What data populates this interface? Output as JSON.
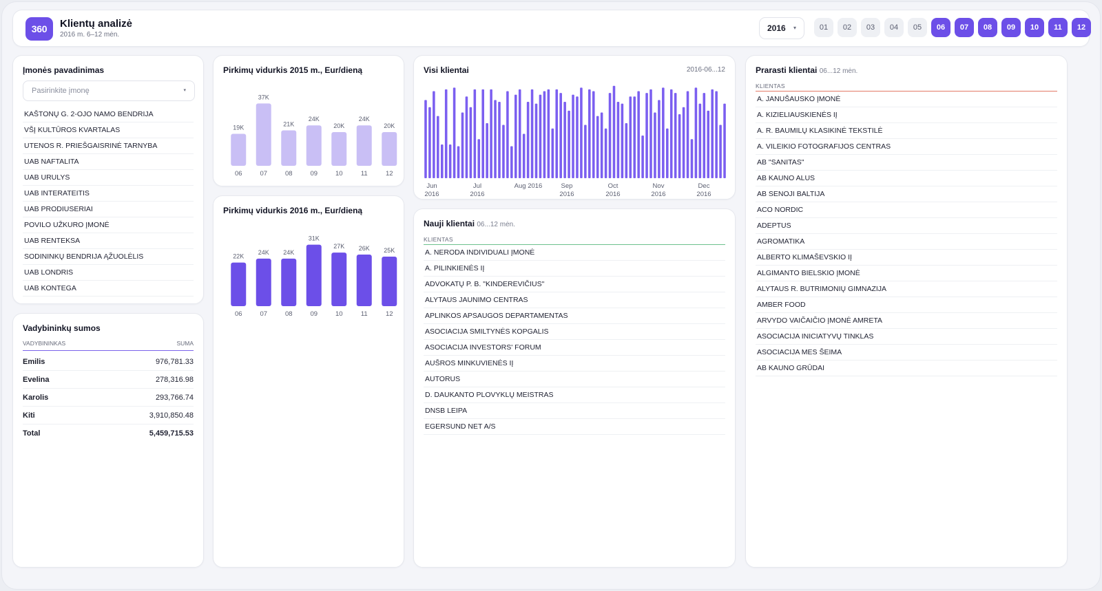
{
  "header": {
    "logo": "360",
    "title": "Klientų analizė",
    "subtitle": "2016 m. 6–12 mėn.",
    "year": "2016",
    "year_chevron_icon": "chevron-down-icon",
    "months": [
      {
        "label": "01",
        "active": false
      },
      {
        "label": "02",
        "active": false
      },
      {
        "label": "03",
        "active": false
      },
      {
        "label": "04",
        "active": false
      },
      {
        "label": "05",
        "active": false
      },
      {
        "label": "06",
        "active": true
      },
      {
        "label": "07",
        "active": true
      },
      {
        "label": "08",
        "active": true
      },
      {
        "label": "09",
        "active": true
      },
      {
        "label": "10",
        "active": true
      },
      {
        "label": "11",
        "active": true
      },
      {
        "label": "12",
        "active": true
      }
    ]
  },
  "companies": {
    "title": "Įmonės pavadinimas",
    "placeholder": "Pasirinkite įmonę",
    "items": [
      "KAŠTONŲ G. 2-OJO NAMO BENDRIJA",
      "VŠĮ KULTŪROS KVARTALAS",
      "UTENOS R. PRIEŠGAISRINĖ TARNYBA",
      "UAB NAFTALITA",
      "UAB URULYS",
      "UAB INTERATEITIS",
      "UAB PRODIUSERIAI",
      "POVILO UŽKURO ĮMONĖ",
      "UAB RENTEKSA",
      "SODININKŲ BENDRIJA ĄŽUOLĖLIS",
      "UAB LONDRIS",
      "UAB KONTEGA"
    ]
  },
  "managers": {
    "title": "Vadybininkų sumos",
    "col_manager": "VADYBININKAS",
    "col_sum": "SUMA",
    "rows": [
      {
        "name": "Emilis",
        "sum": "976,781.33"
      },
      {
        "name": "Evelina",
        "sum": "278,316.98"
      },
      {
        "name": "Karolis",
        "sum": "293,766.74"
      },
      {
        "name": "Kiti",
        "sum": "3,910,850.48"
      }
    ],
    "total_label": "Total",
    "total_value": "5,459,715.53"
  },
  "avg2015": {
    "title": "Pirkimų vidurkis 2015 m., Eur/dieną"
  },
  "avg2016": {
    "title": "Pirkimų vidurkis 2016 m., Eur/dieną"
  },
  "all_clients": {
    "title": "Visi klientai",
    "date": "2016-06...12"
  },
  "new_clients": {
    "title": "Nauji klientai",
    "period": "06...12 mėn.",
    "col": "KLIENTAS",
    "items": [
      "A. NERODA INDIVIDUALI ĮMONĖ",
      "A. PILINKIENĖS IĮ",
      "ADVOKATŲ P. B. \"KINDEREVIČIUS\"",
      "ALYTAUS JAUNIMO CENTRAS",
      "APLINKOS APSAUGOS DEPARTAMENTAS",
      "ASOCIACIJA SMILTYNĖS KOPGALIS",
      "ASOCIACIJA INVESTORS' FORUM",
      "AUŠROS MINKUVIENĖS IĮ",
      "AUTORUS",
      "D. DAUKANTO PLOVYKLŲ MEISTRAS",
      "DNSB LEIPA",
      "EGERSUND NET A/S"
    ]
  },
  "lost_clients": {
    "title": "Prarasti klientai",
    "period": "06...12 mėn.",
    "col": "KLIENTAS",
    "items": [
      "A. JANUŠAUSKO ĮMONĖ",
      "A. KIZIELIAUSKIENĖS IĮ",
      "A. R. BAUMILŲ KLASIKINĖ TEKSTILĖ",
      "A. VILEIKIO FOTOGRAFIJOS CENTRAS",
      "AB \"SANITAS\"",
      "AB KAUNO ALUS",
      "AB SENOJI BALTIJA",
      "ACO NORDIC",
      "ADEPTUS",
      "AGROMATIKA",
      "ALBERTO KLIMAŠEVSKIO IĮ",
      "ALGIMANTO BIELSKIO ĮMONĖ",
      "ALYTAUS R. BUTRIMONIŲ GIMNAZIJA",
      "AMBER FOOD",
      "ARVYDO VAIČAIČIO ĮMONĖ AMRETA",
      "ASOCIACIJA INICIATYVŲ TINKLAS",
      "ASOCIACIJA MES ŠEIMA",
      "AB KAUNO GRŪDAI"
    ]
  },
  "chart_data": [
    {
      "type": "bar",
      "id": "avg2015",
      "categories": [
        "06",
        "07",
        "08",
        "09",
        "10",
        "11",
        "12"
      ],
      "values": [
        19,
        37,
        21,
        24,
        20,
        24,
        20
      ],
      "data_labels": [
        "19K",
        "37K",
        "21K",
        "24K",
        "20K",
        "24K",
        "20K"
      ],
      "ylim": [
        0,
        40
      ],
      "color": "#c9bff5"
    },
    {
      "type": "bar",
      "id": "avg2016",
      "categories": [
        "06",
        "07",
        "08",
        "09",
        "10",
        "11",
        "12"
      ],
      "values": [
        22,
        24,
        24,
        31,
        27,
        26,
        25
      ],
      "data_labels": [
        "22K",
        "24K",
        "24K",
        "31K",
        "27K",
        "26K",
        "25K"
      ],
      "ylim": [
        0,
        34
      ],
      "color": "#6c4fe8"
    },
    {
      "type": "bar",
      "id": "all_clients",
      "x_ticks": [
        "Jun\n2016",
        "Jul\n2016",
        "Aug 2016",
        "Sep\n2016",
        "Oct\n2016",
        "Nov\n2016",
        "Dec\n2016"
      ],
      "values": [
        88,
        80,
        98,
        70,
        38,
        100,
        38,
        102,
        36,
        74,
        92,
        80,
        100,
        44,
        100,
        62,
        100,
        88,
        86,
        60,
        98,
        36,
        94,
        100,
        50,
        86,
        100,
        84,
        94,
        98,
        100,
        56,
        100,
        96,
        86,
        76,
        94,
        92,
        102,
        60,
        100,
        98,
        70,
        74,
        56,
        96,
        104,
        86,
        84,
        62,
        92,
        92,
        98,
        48,
        96,
        100,
        74,
        88,
        102,
        56,
        100,
        96,
        72,
        80,
        98,
        44,
        102,
        84,
        96,
        76,
        100,
        98,
        60,
        84
      ],
      "ylim": [
        0,
        110
      ],
      "color": "#7b5ff0"
    }
  ]
}
